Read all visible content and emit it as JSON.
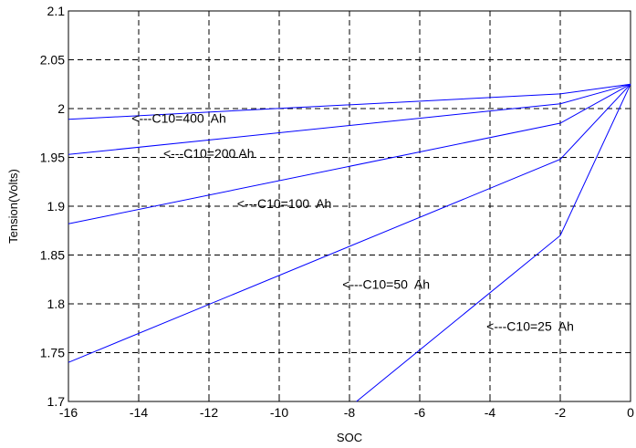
{
  "chart_data": {
    "type": "line",
    "xlabel": "SOC",
    "ylabel": "Tension(Volts)",
    "xlim": [
      -16,
      0
    ],
    "ylim": [
      1.7,
      2.1
    ],
    "x_ticks": [
      "-16",
      "-14",
      "-12",
      "-10",
      "-8",
      "-6",
      "-4",
      "-2",
      "0"
    ],
    "y_ticks": [
      "1.7",
      "1.75",
      "1.8",
      "1.85",
      "1.9",
      "1.95",
      "2",
      "2.05",
      "2.1"
    ],
    "grid": true,
    "line_color": "#0000ff",
    "series": [
      {
        "name": "C10=400 Ah",
        "x": [
          -16,
          -2,
          0
        ],
        "y": [
          1.989,
          2.015,
          2.025
        ]
      },
      {
        "name": "C10=200 Ah",
        "x": [
          -16,
          -2,
          0
        ],
        "y": [
          1.953,
          2.005,
          2.025
        ]
      },
      {
        "name": "C10=100 Ah",
        "x": [
          -16,
          -2,
          0
        ],
        "y": [
          1.882,
          1.985,
          2.025
        ]
      },
      {
        "name": "C10=50 Ah",
        "x": [
          -16,
          -2,
          0
        ],
        "y": [
          1.74,
          1.948,
          2.025
        ]
      },
      {
        "name": "C10=25 Ah",
        "x": [
          -7.8,
          -2,
          0
        ],
        "y": [
          1.7,
          1.87,
          2.025
        ]
      }
    ],
    "annotations": [
      {
        "text": "<---C10=400  Ah",
        "x": -14.2,
        "y": 1.99
      },
      {
        "text": "<---C10=200 Ah",
        "x": -13.3,
        "y": 1.954
      },
      {
        "text": "<---C10=100  Ah",
        "x": -11.2,
        "y": 1.903
      },
      {
        "text": "<---C10=50  Ah",
        "x": -8.2,
        "y": 1.82
      },
      {
        "text": "<---C10=25  Ah",
        "x": -4.1,
        "y": 1.777
      }
    ]
  }
}
